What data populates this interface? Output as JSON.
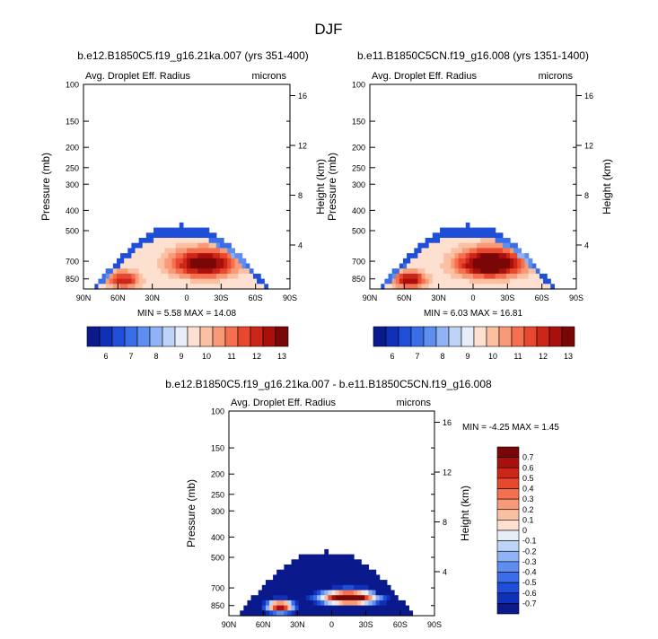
{
  "page_title": "DJF",
  "chart_data": [
    {
      "type": "heatmap",
      "id": "panel-1",
      "title": "b.e12.B1850C5.f19_g16.21ka.007 (yrs 351-400)",
      "left_label": "Avg. Droplet Eff. Radius",
      "right_label": "microns",
      "ylabel": "Pressure (mb)",
      "y2label": "Height (km)",
      "x_ticks": [
        "90N",
        "60N",
        "30N",
        "0",
        "30S",
        "60S",
        "90S"
      ],
      "y_ticks": [
        "100",
        "150",
        "200",
        "250",
        "300",
        "400",
        "500",
        "700",
        "850"
      ],
      "y2_ticks": [
        "16",
        "12",
        "8",
        "4"
      ],
      "stats": "MIN =  5.58  MAX =  14.08",
      "min": 5.58,
      "max": 14.08,
      "field_model": "main_lobe",
      "field_peak": 13.8,
      "colorbar": {
        "colors": [
          "#0a1a8c",
          "#1030b8",
          "#1f4fd8",
          "#3a6ee8",
          "#5d8ef0",
          "#8fb3f4",
          "#bdd4f6",
          "#e8eef8",
          "#fde0d0",
          "#fbbfa2",
          "#f89a77",
          "#f4704e",
          "#e8482e",
          "#cc2618",
          "#a8100d",
          "#7a0707"
        ],
        "labels": [
          "6",
          "7",
          "8",
          "9",
          "10",
          "11",
          "12",
          "13"
        ]
      }
    },
    {
      "type": "heatmap",
      "id": "panel-2",
      "title": "b.e11.B1850C5CN.f19_g16.008 (yrs 1351-1400)",
      "left_label": "Avg. Droplet Eff. Radius",
      "right_label": "microns",
      "ylabel": "Pressure (mb)",
      "y2label": "Height (km)",
      "x_ticks": [
        "90N",
        "60N",
        "30N",
        "0",
        "30S",
        "60S",
        "90S"
      ],
      "y_ticks": [
        "100",
        "150",
        "200",
        "250",
        "300",
        "400",
        "500",
        "700",
        "850"
      ],
      "y2_ticks": [
        "16",
        "12",
        "8",
        "4"
      ],
      "stats": "MIN =  6.03  MAX =  16.81",
      "min": 6.03,
      "max": 16.81,
      "field_model": "main_lobe",
      "field_peak": 14.6,
      "colorbar": {
        "colors": [
          "#0a1a8c",
          "#1030b8",
          "#1f4fd8",
          "#3a6ee8",
          "#5d8ef0",
          "#8fb3f4",
          "#bdd4f6",
          "#e8eef8",
          "#fde0d0",
          "#fbbfa2",
          "#f89a77",
          "#f4704e",
          "#e8482e",
          "#cc2618",
          "#a8100d",
          "#7a0707"
        ],
        "labels": [
          "6",
          "7",
          "8",
          "9",
          "10",
          "11",
          "12",
          "13"
        ]
      }
    },
    {
      "type": "heatmap",
      "id": "panel-3",
      "title": "b.e12.B1850C5.f19_g16.21ka.007 - b.e11.B1850C5CN.f19_g16.008",
      "left_label": "Avg. Droplet Eff. Radius",
      "right_label": "microns",
      "ylabel": "Pressure (mb)",
      "y2label": "Height (km)",
      "x_ticks": [
        "90N",
        "60N",
        "30N",
        "0",
        "30S",
        "60S",
        "90S"
      ],
      "y_ticks": [
        "100",
        "150",
        "200",
        "250",
        "300",
        "400",
        "500",
        "700",
        "850"
      ],
      "y2_ticks": [
        "16",
        "12",
        "8",
        "4"
      ],
      "stats": "MIN = -4.25  MAX =  1.45",
      "min": -4.25,
      "max": 1.45,
      "field_model": "difference",
      "colorbar": {
        "colors": [
          "#7a0707",
          "#a8100d",
          "#cc2618",
          "#e8482e",
          "#f4704e",
          "#f89a77",
          "#fbbfa2",
          "#fde0d0",
          "#e8eef8",
          "#bdd4f6",
          "#8fb3f4",
          "#5d8ef0",
          "#3a6ee8",
          "#1f4fd8",
          "#1030b8",
          "#0a1a8c"
        ],
        "labels": [
          "0.7",
          "0.6",
          "0.5",
          "0.4",
          "0.3",
          "0.2",
          "0.1",
          "0",
          "-0.1",
          "-0.2",
          "-0.3",
          "-0.4",
          "-0.5",
          "-0.6",
          "-0.7"
        ]
      }
    }
  ]
}
